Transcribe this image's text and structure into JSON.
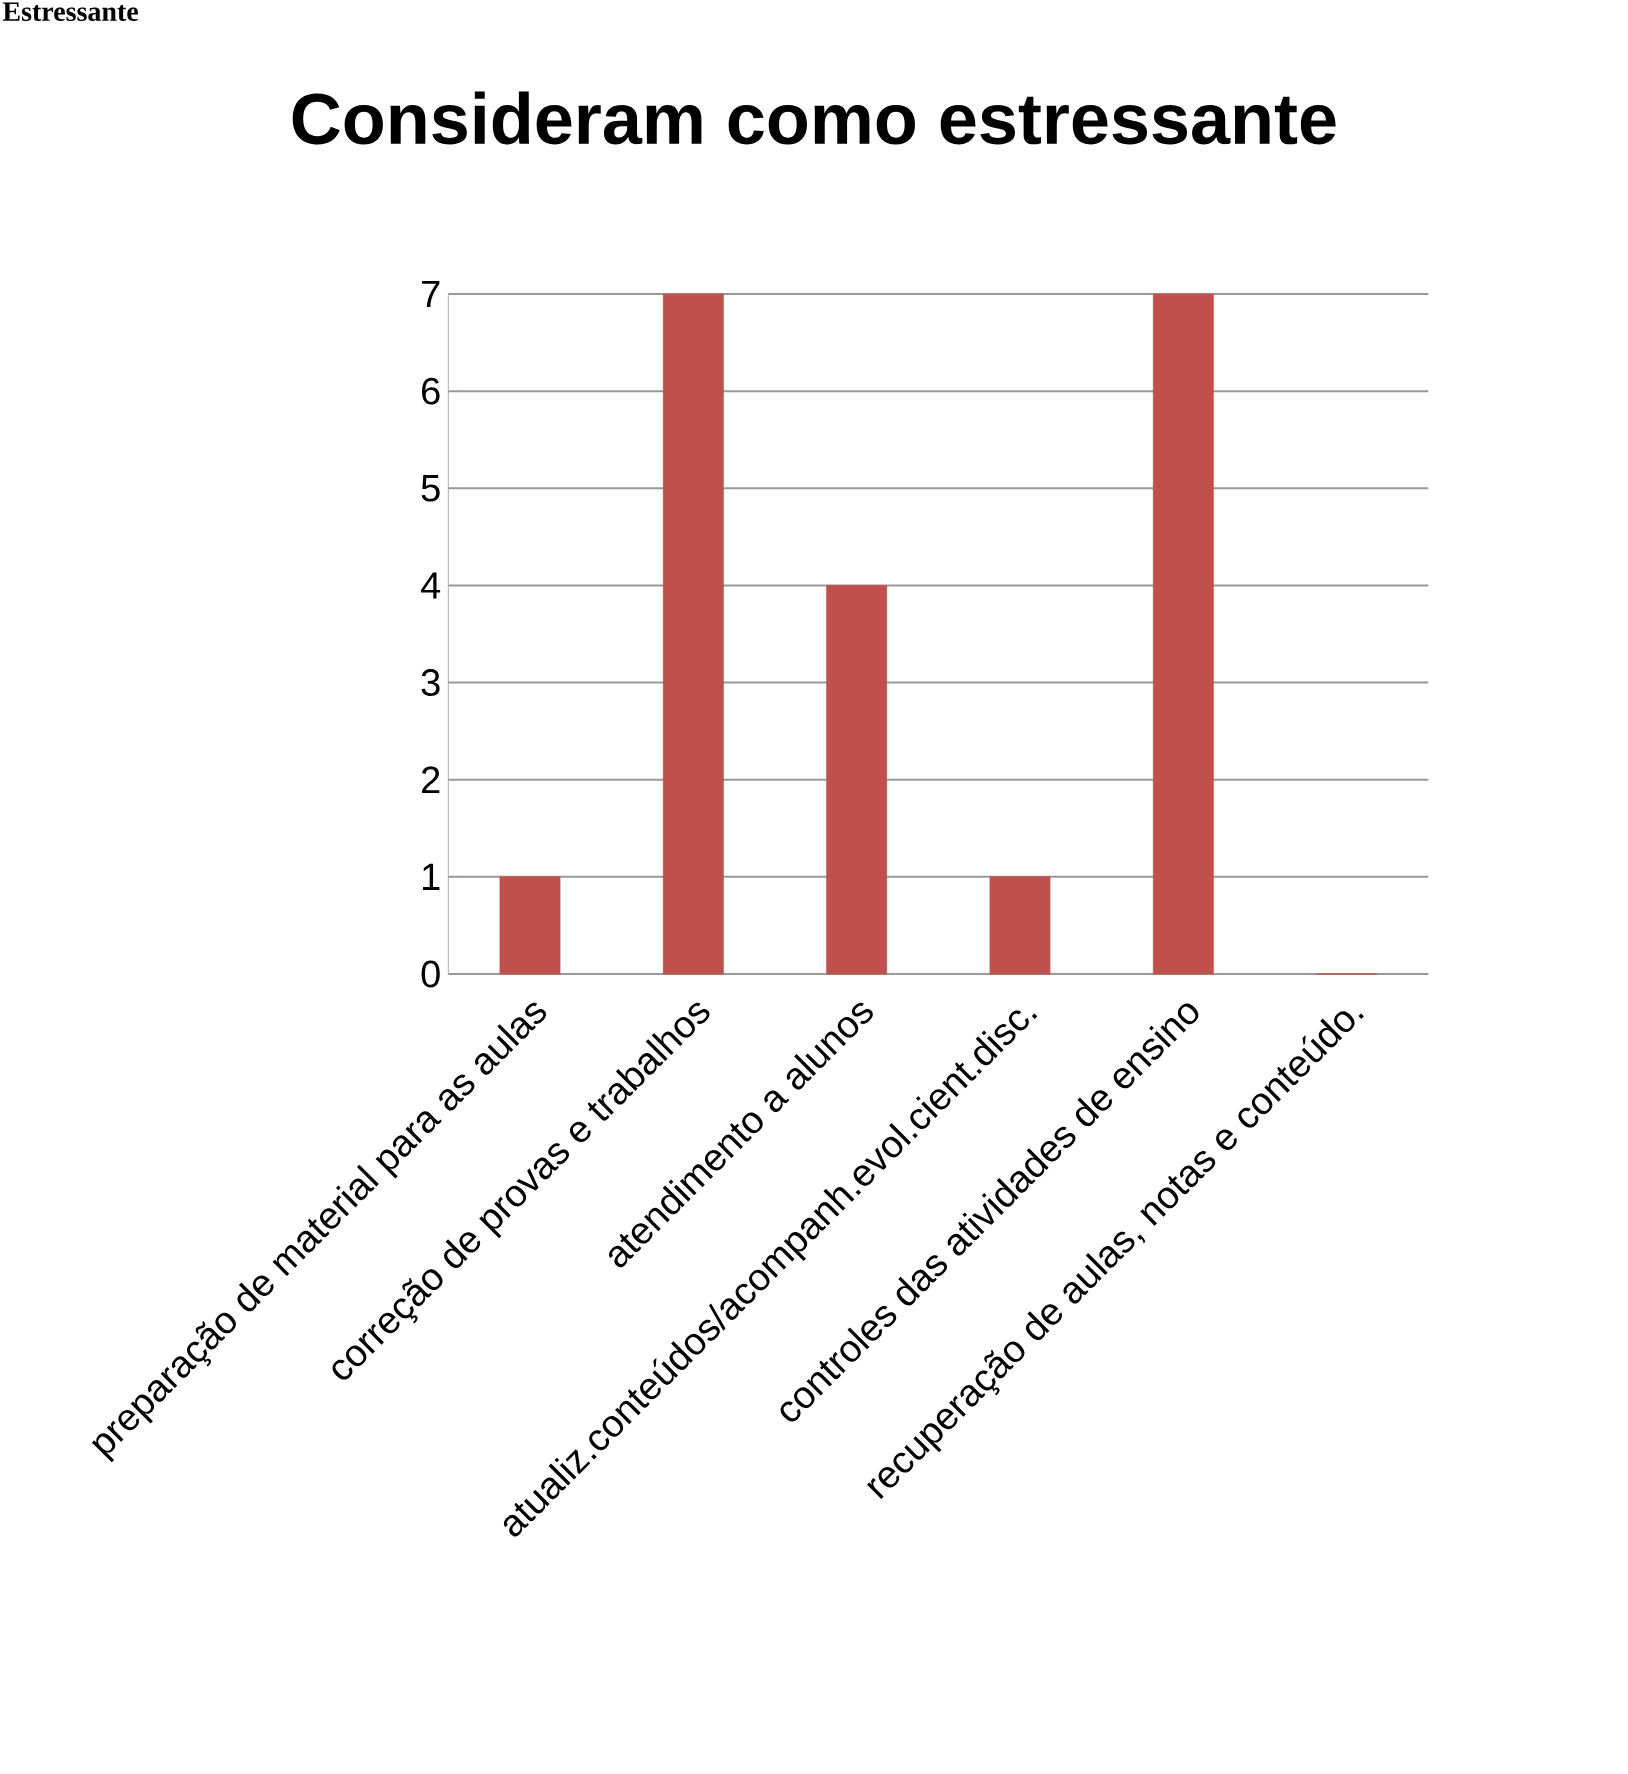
{
  "chart_data": {
    "type": "bar",
    "title": "Consideram como estressante",
    "annotations": [
      "Estressante"
    ],
    "categories": [
      "preparação de material para as aulas",
      "correção de provas e trabalhos",
      "atendimento a alunos",
      "atualiz.conteúdos/acompanh.evol.cient.disc.",
      "controles das atividades de ensino",
      "recuperação de aulas, notas e conteúdo."
    ],
    "values": [
      1,
      7,
      4,
      1,
      7,
      0
    ],
    "color": "#c0504d",
    "ylim": [
      0,
      7
    ],
    "yticks": [
      0,
      1,
      2,
      3,
      4,
      5,
      6,
      7
    ],
    "grid": "y"
  }
}
